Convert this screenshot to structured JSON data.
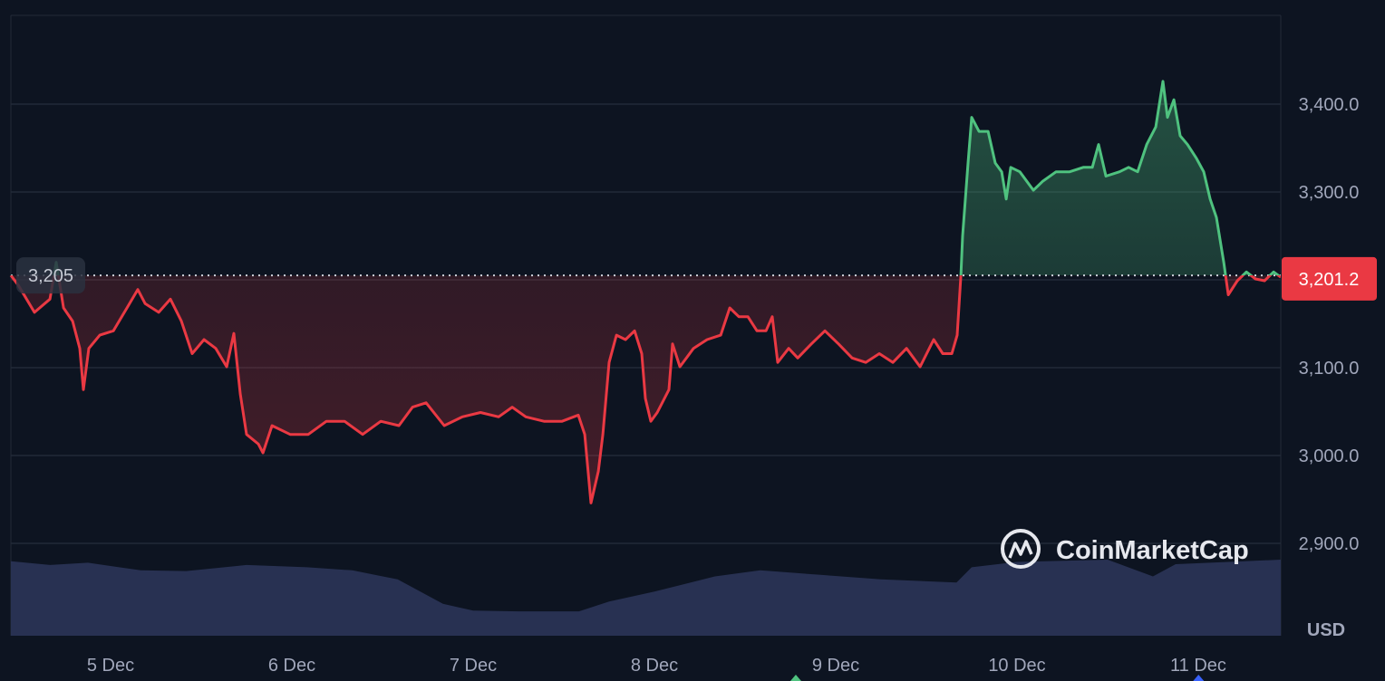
{
  "chart_data": {
    "type": "area",
    "currency": "USD",
    "baseline": 3205,
    "baseline_label": "3,205",
    "current_price": 3201.2,
    "current_price_label": "3,201.2",
    "ylim": [
      2800,
      3500
    ],
    "y_ticks": [
      {
        "value": 3400,
        "label": "3,400.0"
      },
      {
        "value": 3300,
        "label": "3,300.0"
      },
      {
        "value": 3200,
        "label": ""
      },
      {
        "value": 3100,
        "label": "3,100.0"
      },
      {
        "value": 3000,
        "label": "3,000.0"
      },
      {
        "value": 2900,
        "label": "2,900.0"
      }
    ],
    "x_ticks": [
      {
        "date": "Dec 5 00:00",
        "label": "5 Dec"
      },
      {
        "date": "Dec 6 00:00",
        "label": "6 Dec"
      },
      {
        "date": "Dec 7 00:00",
        "label": "7 Dec"
      },
      {
        "date": "Dec 8 00:00",
        "label": "8 Dec"
      },
      {
        "date": "Dec 9 00:00",
        "label": "9 Dec"
      },
      {
        "date": "Dec 10 00:00",
        "label": "10 Dec"
      },
      {
        "date": "Dec 11 00:00",
        "label": "11 Dec"
      }
    ],
    "grid": true,
    "colors": {
      "up": "#4fc27f",
      "down": "#ea3943",
      "volume": "#283152",
      "grid": "#222a38",
      "background": "#0d1421"
    },
    "markers": [
      {
        "date": "Dec 8 18:43",
        "color": "#4fc27f"
      },
      {
        "date": "Dec 11 00:02",
        "color": "#3861fb"
      }
    ],
    "watermark": "CoinMarketCap",
    "series": [
      [
        "Dec 4 10:48",
        3205
      ],
      [
        "Dec 4 11:46",
        3194
      ],
      [
        "Dec 4 13:55",
        3163
      ],
      [
        "Dec 4 15:58",
        3178
      ],
      [
        "Dec 4 16:48",
        3220
      ],
      [
        "Dec 4 17:46",
        3168
      ],
      [
        "Dec 4 18:58",
        3153
      ],
      [
        "Dec 4 19:55",
        3122
      ],
      [
        "Dec 4 20:24",
        3075
      ],
      [
        "Dec 4 21:07",
        3122
      ],
      [
        "Dec 4 22:34",
        3137
      ],
      [
        "Dec 5 00:22",
        3142
      ],
      [
        "Dec 5 02:10",
        3168
      ],
      [
        "Dec 5 03:36",
        3189
      ],
      [
        "Dec 5 04:34",
        3173
      ],
      [
        "Dec 5 06:22",
        3163
      ],
      [
        "Dec 5 07:55",
        3178
      ],
      [
        "Dec 5 09:22",
        3153
      ],
      [
        "Dec 5 10:48",
        3116
      ],
      [
        "Dec 5 12:22",
        3132
      ],
      [
        "Dec 5 13:55",
        3122
      ],
      [
        "Dec 5 15:22",
        3101
      ],
      [
        "Dec 5 16:19",
        3139
      ],
      [
        "Dec 5 17:10",
        3070
      ],
      [
        "Dec 5 18:00",
        3024
      ],
      [
        "Dec 5 19:34",
        3013
      ],
      [
        "Dec 5 20:10",
        3003
      ],
      [
        "Dec 5 21:22",
        3034
      ],
      [
        "Dec 5 23:46",
        3024
      ],
      [
        "Dec 6 02:10",
        3024
      ],
      [
        "Dec 6 04:34",
        3039
      ],
      [
        "Dec 6 06:58",
        3039
      ],
      [
        "Dec 6 09:22",
        3024
      ],
      [
        "Dec 6 11:46",
        3039
      ],
      [
        "Dec 6 14:10",
        3034
      ],
      [
        "Dec 6 15:58",
        3055
      ],
      [
        "Dec 6 17:46",
        3060
      ],
      [
        "Dec 6 20:10",
        3034
      ],
      [
        "Dec 6 22:34",
        3044
      ],
      [
        "Dec 7 00:58",
        3049
      ],
      [
        "Dec 7 03:22",
        3044
      ],
      [
        "Dec 7 05:10",
        3055
      ],
      [
        "Dec 7 06:58",
        3044
      ],
      [
        "Dec 7 09:22",
        3039
      ],
      [
        "Dec 7 11:46",
        3039
      ],
      [
        "Dec 7 13:55",
        3046
      ],
      [
        "Dec 7 14:46",
        3024
      ],
      [
        "Dec 7 15:36",
        2946
      ],
      [
        "Dec 7 16:34",
        2982
      ],
      [
        "Dec 7 17:10",
        3024
      ],
      [
        "Dec 7 18:00",
        3106
      ],
      [
        "Dec 7 18:58",
        3137
      ],
      [
        "Dec 7 20:10",
        3132
      ],
      [
        "Dec 7 21:22",
        3142
      ],
      [
        "Dec 7 22:19",
        3116
      ],
      [
        "Dec 7 22:48",
        3065
      ],
      [
        "Dec 7 23:31",
        3039
      ],
      [
        "Dec 8 00:22",
        3049
      ],
      [
        "Dec 8 01:55",
        3075
      ],
      [
        "Dec 8 02:24",
        3127
      ],
      [
        "Dec 8 03:22",
        3101
      ],
      [
        "Dec 8 05:10",
        3122
      ],
      [
        "Dec 8 06:58",
        3132
      ],
      [
        "Dec 8 08:46",
        3137
      ],
      [
        "Dec 8 09:58",
        3168
      ],
      [
        "Dec 8 11:10",
        3158
      ],
      [
        "Dec 8 12:22",
        3158
      ],
      [
        "Dec 8 13:34",
        3142
      ],
      [
        "Dec 8 14:46",
        3142
      ],
      [
        "Dec 8 15:36",
        3158
      ],
      [
        "Dec 8 16:19",
        3106
      ],
      [
        "Dec 8 17:46",
        3122
      ],
      [
        "Dec 8 18:58",
        3111
      ],
      [
        "Dec 8 20:46",
        3127
      ],
      [
        "Dec 8 22:34",
        3142
      ],
      [
        "Dec 9 00:22",
        3127
      ],
      [
        "Dec 9 02:10",
        3111
      ],
      [
        "Dec 9 03:58",
        3106
      ],
      [
        "Dec 9 05:46",
        3116
      ],
      [
        "Dec 9 07:34",
        3106
      ],
      [
        "Dec 9 09:22",
        3122
      ],
      [
        "Dec 9 11:10",
        3101
      ],
      [
        "Dec 9 12:58",
        3132
      ],
      [
        "Dec 9 14:10",
        3116
      ],
      [
        "Dec 9 15:22",
        3116
      ],
      [
        "Dec 9 16:05",
        3137
      ],
      [
        "Dec 9 16:34",
        3205
      ],
      [
        "Dec 9 16:48",
        3250
      ],
      [
        "Dec 9 17:31",
        3333
      ],
      [
        "Dec 9 18:00",
        3385
      ],
      [
        "Dec 9 18:58",
        3369
      ],
      [
        "Dec 9 20:10",
        3369
      ],
      [
        "Dec 9 21:07",
        3333
      ],
      [
        "Dec 9 21:58",
        3323
      ],
      [
        "Dec 9 22:34",
        3292
      ],
      [
        "Dec 9 23:10",
        3328
      ],
      [
        "Dec 10 00:22",
        3323
      ],
      [
        "Dec 10 02:10",
        3302
      ],
      [
        "Dec 10 03:22",
        3312
      ],
      [
        "Dec 10 05:10",
        3323
      ],
      [
        "Dec 10 06:58",
        3323
      ],
      [
        "Dec 10 08:46",
        3328
      ],
      [
        "Dec 10 09:58",
        3328
      ],
      [
        "Dec 10 10:48",
        3354
      ],
      [
        "Dec 10 11:46",
        3318
      ],
      [
        "Dec 10 13:34",
        3323
      ],
      [
        "Dec 10 14:46",
        3328
      ],
      [
        "Dec 10 15:58",
        3323
      ],
      [
        "Dec 10 17:10",
        3354
      ],
      [
        "Dec 10 18:22",
        3374
      ],
      [
        "Dec 10 19:19",
        3426
      ],
      [
        "Dec 10 19:55",
        3385
      ],
      [
        "Dec 10 20:46",
        3405
      ],
      [
        "Dec 10 21:36",
        3364
      ],
      [
        "Dec 10 22:34",
        3354
      ],
      [
        "Dec 10 23:46",
        3338
      ],
      [
        "Dec 11 00:43",
        3323
      ],
      [
        "Dec 11 01:34",
        3292
      ],
      [
        "Dec 11 02:24",
        3271
      ],
      [
        "Dec 11 03:22",
        3220
      ],
      [
        "Dec 11 03:58",
        3183
      ],
      [
        "Dec 11 05:10",
        3199
      ],
      [
        "Dec 11 06:22",
        3209
      ],
      [
        "Dec 11 07:34",
        3201
      ],
      [
        "Dec 11 08:46",
        3199
      ],
      [
        "Dec 11 09:58",
        3209
      ],
      [
        "Dec 11 10:55",
        3203
      ]
    ],
    "volume_relative": [
      [
        "Dec 4 10:48",
        0.98
      ],
      [
        "Dec 4 16:00",
        0.93
      ],
      [
        "Dec 4 21:00",
        0.96
      ],
      [
        "Dec 5 04:00",
        0.86
      ],
      [
        "Dec 5 10:00",
        0.85
      ],
      [
        "Dec 5 18:00",
        0.93
      ],
      [
        "Dec 6 02:00",
        0.9
      ],
      [
        "Dec 6 08:00",
        0.86
      ],
      [
        "Dec 6 14:00",
        0.74
      ],
      [
        "Dec 6 20:00",
        0.42
      ],
      [
        "Dec 7 00:00",
        0.33
      ],
      [
        "Dec 7 06:00",
        0.32
      ],
      [
        "Dec 7 14:00",
        0.32
      ],
      [
        "Dec 7 18:00",
        0.45
      ],
      [
        "Dec 8 00:00",
        0.58
      ],
      [
        "Dec 8 08:00",
        0.78
      ],
      [
        "Dec 8 14:00",
        0.86
      ],
      [
        "Dec 8 22:00",
        0.8
      ],
      [
        "Dec 9 06:00",
        0.74
      ],
      [
        "Dec 9 16:00",
        0.7
      ],
      [
        "Dec 9 18:00",
        0.9
      ],
      [
        "Dec 10 00:00",
        0.97
      ],
      [
        "Dec 10 12:00",
        1.0
      ],
      [
        "Dec 10 18:00",
        0.78
      ],
      [
        "Dec 10 21:00",
        0.94
      ],
      [
        "Dec 11 04:00",
        0.97
      ],
      [
        "Dec 11 10:55",
        1.0
      ]
    ]
  }
}
